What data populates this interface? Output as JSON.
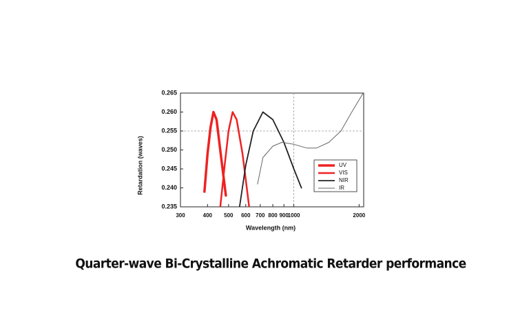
{
  "chart_data": {
    "type": "line",
    "title": "Quarter-wave Bi-Crystalline Achromatic Retarder performance",
    "x_label": "Wavelength (nm)",
    "y_label": "Retardation (waves)",
    "x_scale": "log",
    "xlim": [
      300,
      2100
    ],
    "ylim": [
      0.235,
      0.265
    ],
    "xticks": [
      300,
      400,
      500,
      600,
      700,
      800,
      900,
      1000,
      2000
    ],
    "yticks": [
      0.235,
      {
        "value": 0.24,
        "label": "0.240"
      },
      0.245,
      {
        "value": 0.25,
        "label": "0.250"
      },
      0.255,
      {
        "value": 0.26,
        "label": "0.260"
      },
      0.265
    ],
    "x_grid": [
      1000
    ],
    "y_grid": [
      0.255
    ],
    "legend_position": "lower right",
    "series": [
      {
        "name": "UV",
        "color": "#ee2222",
        "width": 3.5,
        "x": [
          387,
          400,
          413,
          426,
          440,
          460,
          486
        ],
        "values": [
          0.239,
          0.249,
          0.256,
          0.26,
          0.258,
          0.249,
          0.238
        ]
      },
      {
        "name": "VIS",
        "color": "#ee2222",
        "width": 2.5,
        "x": [
          458,
          480,
          500,
          522,
          545,
          580,
          622
        ],
        "values": [
          0.235,
          0.246,
          0.255,
          0.26,
          0.258,
          0.249,
          0.235
        ]
      },
      {
        "name": "NIR",
        "color": "#222222",
        "width": 1.8,
        "x": [
          562,
          600,
          650,
          720,
          800,
          900,
          1000,
          1084
        ],
        "values": [
          0.235,
          0.246,
          0.255,
          0.26,
          0.258,
          0.252,
          0.245,
          0.24
        ]
      },
      {
        "name": "IR",
        "color": "#666666",
        "width": 1,
        "x": [
          680,
          720,
          800,
          880,
          1000,
          1150,
          1270,
          1450,
          1650,
          1850,
          2090
        ],
        "values": [
          0.241,
          0.248,
          0.251,
          0.252,
          0.2515,
          0.2505,
          0.2505,
          0.252,
          0.255,
          0.26,
          0.265
        ]
      }
    ]
  }
}
